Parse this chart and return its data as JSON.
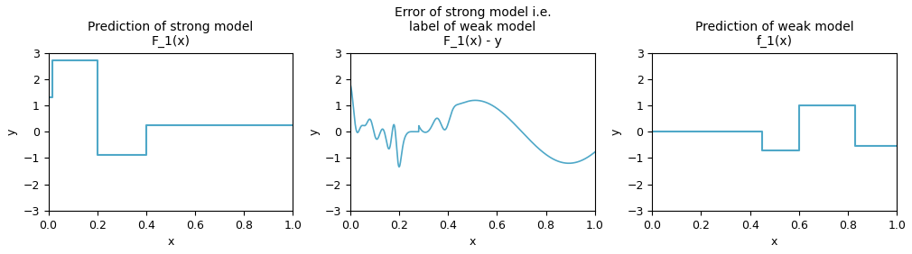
{
  "title1": "Prediction of strong model\nF_1(x)",
  "title2": "Error of strong model i.e.\nlabel of weak model\nF_1(x) - y",
  "title3": "Prediction of weak model\nf_1(x)",
  "xlabel": "x",
  "ylabel": "y",
  "ylim": [
    -3,
    3
  ],
  "xlim": [
    0.0,
    1.0
  ],
  "line_color": "#4fa8c8",
  "background_color": "#ffffff",
  "title_fontsize": 10,
  "figsize": [
    10.1,
    2.82
  ],
  "dpi": 100
}
